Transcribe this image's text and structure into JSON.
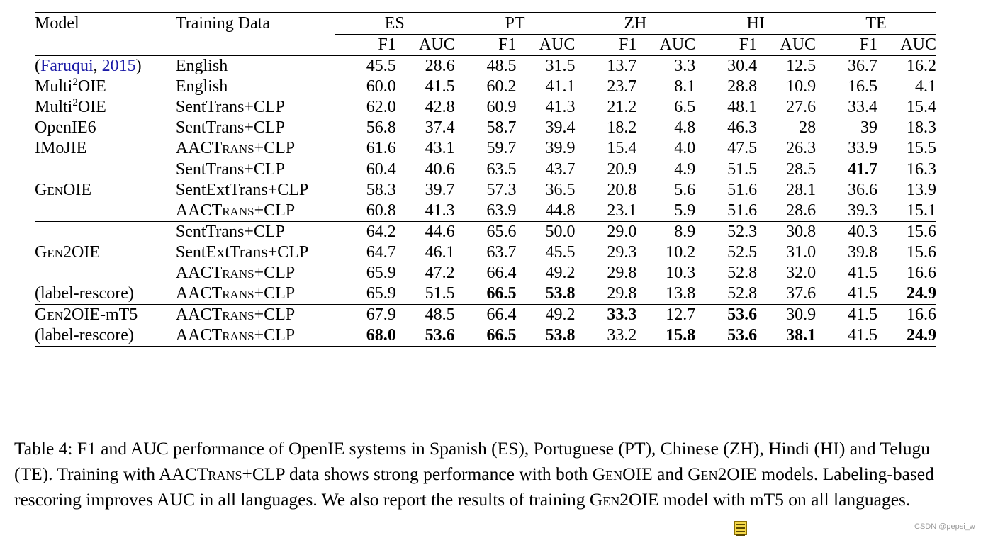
{
  "header": {
    "model": "Model",
    "training_data": "Training Data",
    "languages": [
      "ES",
      "PT",
      "ZH",
      "HI",
      "TE"
    ],
    "metric_f1": "F1",
    "metric_auc": "AUC"
  },
  "rows": {
    "r1": {
      "model_parts": [
        "(",
        "Faruqui",
        ", ",
        "2015",
        ")"
      ],
      "train": "English",
      "vals": [
        "45.5",
        "28.6",
        "48.5",
        "31.5",
        "13.7",
        "3.3",
        "30.4",
        "12.5",
        "36.7",
        "16.2"
      ]
    },
    "r2": {
      "model_prefix": "Multi",
      "model_sup": "2",
      "model_suffix": "OIE",
      "train": "English",
      "vals": [
        "60.0",
        "41.5",
        "60.2",
        "41.1",
        "23.7",
        "8.1",
        "28.8",
        "10.9",
        "16.5",
        "4.1"
      ]
    },
    "r3": {
      "model_prefix": "Multi",
      "model_sup": "2",
      "model_suffix": "OIE",
      "train": "SentTrans+CLP",
      "vals": [
        "62.0",
        "42.8",
        "60.9",
        "41.3",
        "21.2",
        "6.5",
        "48.1",
        "27.6",
        "33.4",
        "15.4"
      ]
    },
    "r4": {
      "model": "OpenIE6",
      "train": "SentTrans+CLP",
      "vals": [
        "56.8",
        "37.4",
        "58.7",
        "39.4",
        "18.2",
        "4.8",
        "46.3",
        "28",
        "39",
        "18.3"
      ]
    },
    "r5": {
      "model": "IMoJIE",
      "train_a": "AAC",
      "train_sc": "Trans",
      "train_b": "+CLP",
      "vals": [
        "61.6",
        "43.1",
        "59.7",
        "39.9",
        "15.4",
        "4.0",
        "47.5",
        "26.3",
        "33.9",
        "15.5"
      ]
    },
    "r6": {
      "train": "SentTrans+CLP",
      "vals": [
        "60.4",
        "40.6",
        "63.5",
        "43.7",
        "20.9",
        "4.9",
        "51.5",
        "28.5",
        "41.7",
        "16.3"
      ]
    },
    "r7": {
      "model_sc": "GenOIE",
      "train": "SentExtTrans+CLP",
      "vals": [
        "58.3",
        "39.7",
        "57.3",
        "36.5",
        "20.8",
        "5.6",
        "51.6",
        "28.1",
        "36.6",
        "13.9"
      ]
    },
    "r8": {
      "train_a": "AAC",
      "train_sc": "Trans",
      "train_b": "+CLP",
      "vals": [
        "60.8",
        "41.3",
        "63.9",
        "44.8",
        "23.1",
        "5.9",
        "51.6",
        "28.6",
        "39.3",
        "15.1"
      ]
    },
    "r9": {
      "train": "SentTrans+CLP",
      "vals": [
        "64.2",
        "44.6",
        "65.6",
        "50.0",
        "29.0",
        "8.9",
        "52.3",
        "30.8",
        "40.3",
        "15.6"
      ]
    },
    "r10": {
      "model_sc": "Gen2OIE",
      "train": "SentExtTrans+CLP",
      "vals": [
        "64.7",
        "46.1",
        "63.7",
        "45.5",
        "29.3",
        "10.2",
        "52.5",
        "31.0",
        "39.8",
        "15.6"
      ]
    },
    "r11": {
      "train_a": "AAC",
      "train_sc": "Trans",
      "train_b": "+CLP",
      "vals": [
        "65.9",
        "47.2",
        "66.4",
        "49.2",
        "29.8",
        "10.3",
        "52.8",
        "32.0",
        "41.5",
        "16.6"
      ]
    },
    "r12": {
      "model": "(label-rescore)",
      "train_a": "AAC",
      "train_sc": "Trans",
      "train_b": "+CLP",
      "vals": [
        "65.9",
        "51.5",
        "66.5",
        "53.8",
        "29.8",
        "13.8",
        "52.8",
        "37.6",
        "41.5",
        "24.9"
      ]
    },
    "r13": {
      "model_sc": "Gen2OIE",
      "model_suffix": "-mT5",
      "train_a": "AAC",
      "train_sc": "Trans",
      "train_b": "+CLP",
      "vals": [
        "67.9",
        "48.5",
        "66.4",
        "49.2",
        "33.3",
        "12.7",
        "53.6",
        "30.9",
        "41.5",
        "16.6"
      ]
    },
    "r14": {
      "model": "(label-rescore)",
      "train_a": "AAC",
      "train_sc": "Trans",
      "train_b": "+CLP",
      "vals": [
        "68.0",
        "53.6",
        "66.5",
        "53.8",
        "33.2",
        "15.8",
        "53.6",
        "38.1",
        "41.5",
        "24.9"
      ]
    }
  },
  "caption": {
    "p1": "Table 4: F1 and AUC performance of OpenIE systems in Spanish (ES), Portuguese (PT), Chinese (ZH), Hindi (HI) and Telugu (TE). Training with AAC",
    "sc1": "Trans",
    "p2": "+CLP data shows strong performance with both ",
    "sc2": "GenOIE",
    "p3": " and ",
    "sc3": "Gen2OIE",
    "p4": " models. Labeling-based rescoring improves AUC in all languages.  We also report the results of training ",
    "sc4": "Gen2OIE",
    "p5": " model with mT5 on all languages."
  },
  "watermark": "CSDN @pepsi_w",
  "icons": {
    "note": "note-icon"
  },
  "colors": {
    "citation": "#1a1aa6",
    "watermark": "#9a9a9a"
  }
}
